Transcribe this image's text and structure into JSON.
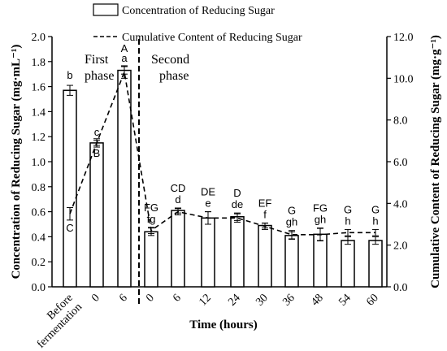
{
  "chart_data": {
    "type": "bar",
    "categories": [
      "Before fermentation",
      "0",
      "6",
      "0",
      "6",
      "12",
      "24",
      "30",
      "36",
      "48",
      "54",
      "60"
    ],
    "xlabel": "Time (hours)",
    "y_left": {
      "label": "Concentration of Reducing Sugar (mg·mL⁻¹)",
      "lim": [
        0,
        2.0
      ],
      "ticks": [
        "0.0",
        "0.2",
        "0.4",
        "0.6",
        "0.8",
        "1.0",
        "1.2",
        "1.4",
        "1.6",
        "1.8",
        "2.0"
      ]
    },
    "y_right": {
      "label": "Cumulative Content of Reducing Sugar (mg·g⁻¹)",
      "lim": [
        0,
        12
      ],
      "ticks": [
        "0.0",
        "2.0",
        "4.0",
        "6.0",
        "8.0",
        "10.0",
        "12.0"
      ]
    },
    "series": [
      {
        "name": "Concentration of Reducing Sugar",
        "kind": "bar",
        "axis": "left",
        "values": [
          1.57,
          1.15,
          1.73,
          0.44,
          0.61,
          0.55,
          0.56,
          0.49,
          0.41,
          0.42,
          0.37,
          0.37
        ],
        "errors": [
          0.04,
          0.02,
          0.03,
          0.03,
          0.02,
          0.05,
          0.03,
          0.02,
          0.03,
          0.05,
          0.03,
          0.03
        ],
        "letters": [
          "b",
          "c",
          "a",
          "fg",
          "d",
          "e",
          "de",
          "f",
          "gh",
          "gh",
          "h",
          "h"
        ]
      },
      {
        "name": "Cumulative Content of Reducing Sugar",
        "kind": "line",
        "style": "dashed",
        "axis": "right",
        "values": [
          3.5,
          6.9,
          10.3,
          2.7,
          3.6,
          3.3,
          3.3,
          2.9,
          2.5,
          2.5,
          2.6,
          2.6
        ],
        "errors": [
          0.3,
          0.2,
          0.3,
          0.15,
          0.15,
          0.3,
          0.2,
          0.15,
          0.2,
          0.3,
          0.15,
          0.15
        ],
        "letters": [
          "C",
          "B",
          "A",
          "FG",
          "CD",
          "DE",
          "D",
          "EF",
          "G",
          "FG",
          "G",
          "G"
        ]
      }
    ],
    "annotations": {
      "phase1": "First phase",
      "phase2": "Second phase"
    },
    "legend_position": "top",
    "grid": false
  }
}
